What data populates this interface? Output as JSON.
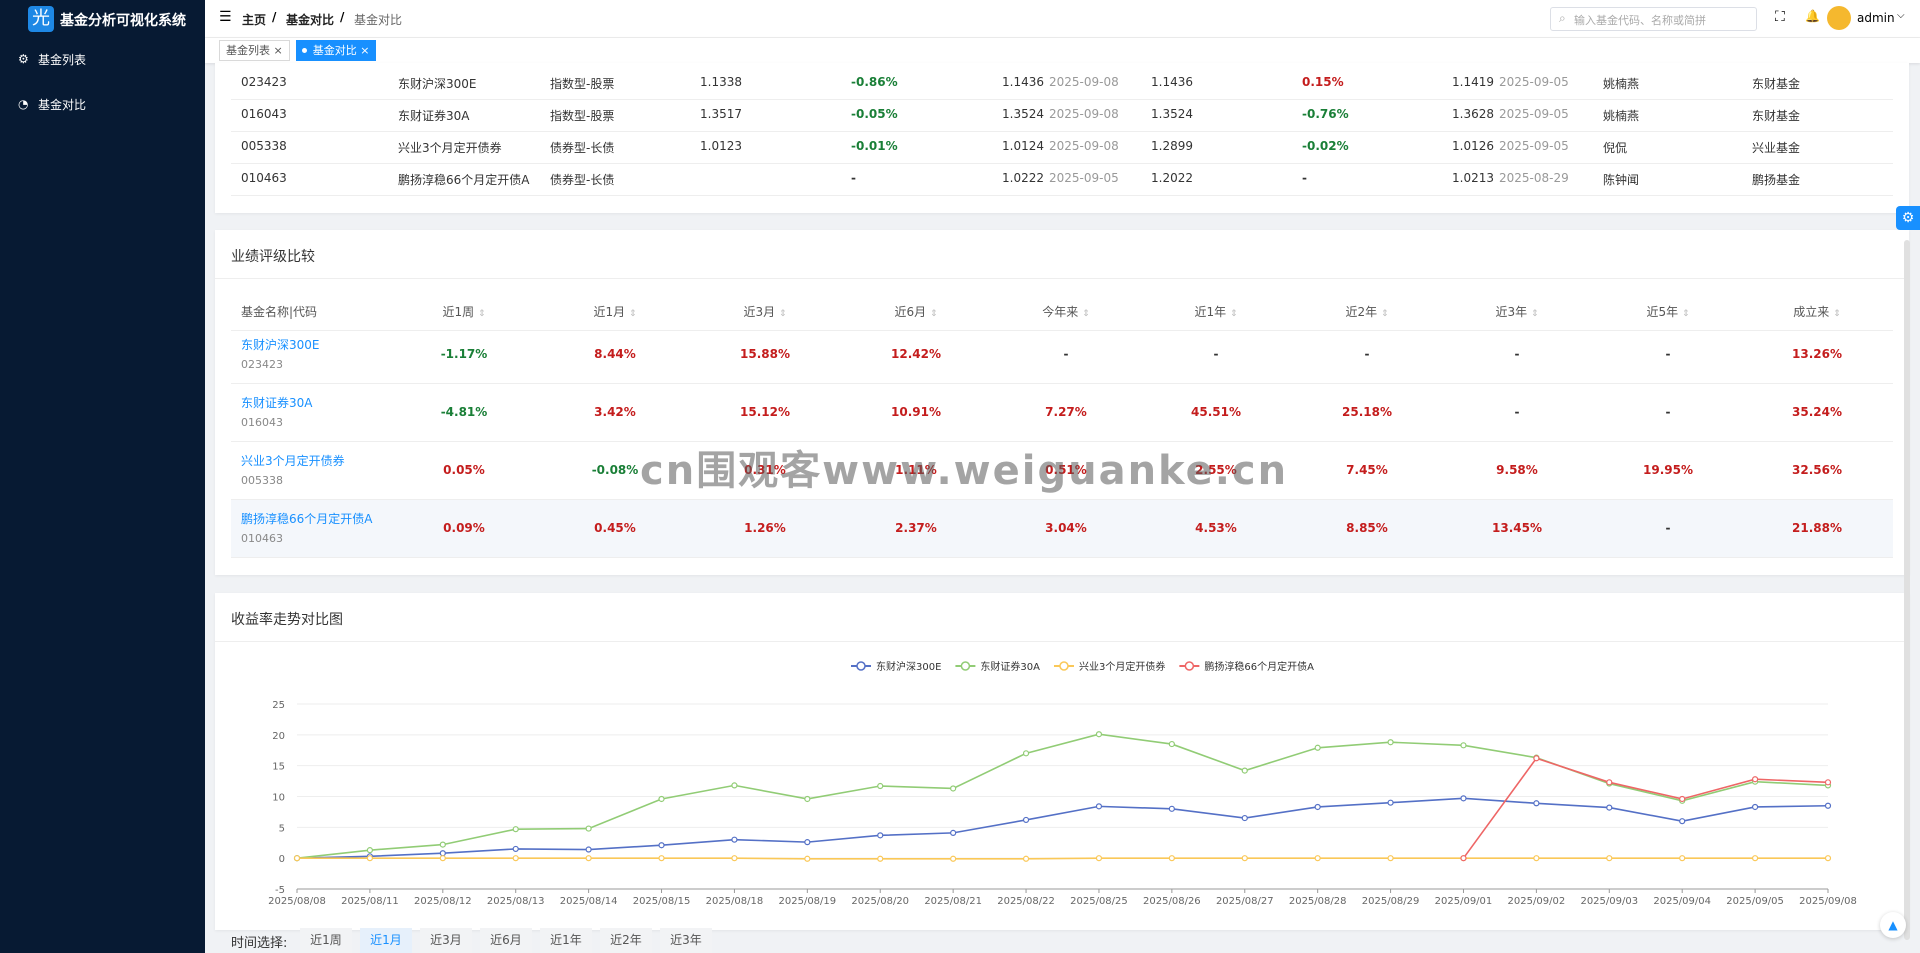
{
  "app": {
    "title": "基金分析可视化系统",
    "logo": "光"
  },
  "sidebar": {
    "items": [
      "基金列表",
      "基金对比"
    ]
  },
  "header": {
    "breadcrumb": [
      "主页",
      "基金对比",
      "基金对比"
    ],
    "search_placeholder": "输入基金代码、名称或简拼",
    "user": "admin"
  },
  "tabs": [
    "基金列表",
    "基金对比"
  ],
  "fund_table": {
    "rows": [
      [
        "023423",
        "东财沪深300E",
        "指数型-股票",
        "1.1338",
        "-0.86%",
        "1.1436",
        "2025-09-08",
        "1.1436",
        "0.15%",
        "1.1419",
        "2025-09-05",
        "姚楠燕",
        "东财基金"
      ],
      [
        "016043",
        "东财证券30A",
        "指数型-股票",
        "1.3517",
        "-0.05%",
        "1.3524",
        "2025-09-08",
        "1.3524",
        "-0.76%",
        "1.3628",
        "2025-09-05",
        "姚楠燕",
        "东财基金"
      ],
      [
        "005338",
        "兴业3个月定开债券",
        "债券型-长债",
        "1.0123",
        "-0.01%",
        "1.0124",
        "2025-09-08",
        "1.2899",
        "-0.02%",
        "1.0126",
        "2025-09-05",
        "倪侃",
        "兴业基金"
      ],
      [
        "010463",
        "鹏扬淳稳66个月定开债A",
        "债券型-长债",
        null,
        "-",
        "1.0222",
        "2025-09-05",
        "1.2022",
        "-",
        "1.0213",
        "2025-08-29",
        "陈钟闻",
        "鹏扬基金"
      ]
    ]
  },
  "performance": {
    "title": "业绩评级比较",
    "headers": [
      "基金名称|代码",
      "近1周",
      "近1月",
      "近3月",
      "近6月",
      "今年来",
      "近1年",
      "近2年",
      "近3年",
      "近5年",
      "成立来"
    ],
    "rows": [
      {
        "name": "东财沪深300E",
        "code": "023423",
        "values": [
          "-1.17%",
          "8.44%",
          "15.88%",
          "12.42%",
          "-",
          "-",
          "-",
          "-",
          "-",
          "13.26%"
        ]
      },
      {
        "name": "东财证券30A",
        "code": "016043",
        "values": [
          "-4.81%",
          "3.42%",
          "15.12%",
          "10.91%",
          "7.27%",
          "45.51%",
          "25.18%",
          "-",
          "-",
          "35.24%"
        ]
      },
      {
        "name": "兴业3个月定开债券",
        "code": "005338",
        "values": [
          "0.05%",
          "-0.08%",
          "0.31%",
          "1.11%",
          "0.51%",
          "2.55%",
          "7.45%",
          "9.58%",
          "19.95%",
          "32.56%"
        ]
      },
      {
        "name": "鹏扬淳稳66个月定开债A",
        "code": "010463",
        "values": [
          "0.09%",
          "0.45%",
          "1.26%",
          "2.37%",
          "3.04%",
          "4.53%",
          "8.85%",
          "13.45%",
          "-",
          "21.88%"
        ]
      }
    ]
  },
  "watermark": "cn围观客www.weiguanke.cn",
  "trend": {
    "title": "收益率走势对比图",
    "chart": {
      "type": "line",
      "categories": [
        "2025/08/08",
        "2025/08/11",
        "2025/08/12",
        "2025/08/13",
        "2025/08/14",
        "2025/08/15",
        "2025/08/18",
        "2025/08/19",
        "2025/08/20",
        "2025/08/21",
        "2025/08/22",
        "2025/08/25",
        "2025/08/26",
        "2025/08/27",
        "2025/08/28",
        "2025/08/29",
        "2025/09/01",
        "2025/09/02",
        "2025/09/03",
        "2025/09/04",
        "2025/09/05",
        "2025/09/08"
      ],
      "series": [
        {
          "name": "东财沪深300E",
          "color": "#5470c6",
          "values": [
            0,
            0.3,
            0.8,
            1.5,
            1.4,
            2.1,
            3,
            2.6,
            3.7,
            4.1,
            6.2,
            8.4,
            8,
            6.5,
            8.3,
            9,
            9.7,
            8.9,
            8.2,
            6,
            8.3,
            8.5
          ]
        },
        {
          "name": "东财证券30A",
          "color": "#91cc75",
          "values": [
            0,
            1.3,
            2.2,
            4.7,
            4.8,
            9.6,
            11.8,
            9.6,
            11.7,
            11.3,
            17,
            20.1,
            18.5,
            14.2,
            17.9,
            18.8,
            18.3,
            16.3,
            12.1,
            9.3,
            12.4,
            11.8
          ]
        },
        {
          "name": "兴业3个月定开债券",
          "color": "#fac858",
          "values": [
            0,
            0,
            0,
            0,
            0,
            0,
            0,
            -0.1,
            -0.1,
            -0.1,
            -0.1,
            0,
            0,
            0,
            0,
            0,
            0,
            0,
            0,
            0,
            0,
            0
          ]
        },
        {
          "name": "鹏扬淳稳66个月定开债A",
          "color": "#ee6666",
          "values": [
            null,
            null,
            null,
            null,
            null,
            null,
            null,
            null,
            null,
            null,
            null,
            null,
            null,
            null,
            null,
            null,
            0,
            16.2,
            12.3,
            9.6,
            12.8,
            12.3
          ]
        }
      ],
      "ylim": [
        -5,
        25
      ],
      "yticks": [
        -5,
        0,
        5,
        10,
        15,
        20,
        25
      ],
      "grid": true
    }
  },
  "time_filter": {
    "label": "时间选择:",
    "options": [
      "近1周",
      "近1月",
      "近3月",
      "近6月",
      "近1年",
      "近2年",
      "近3年"
    ],
    "active": 1
  }
}
